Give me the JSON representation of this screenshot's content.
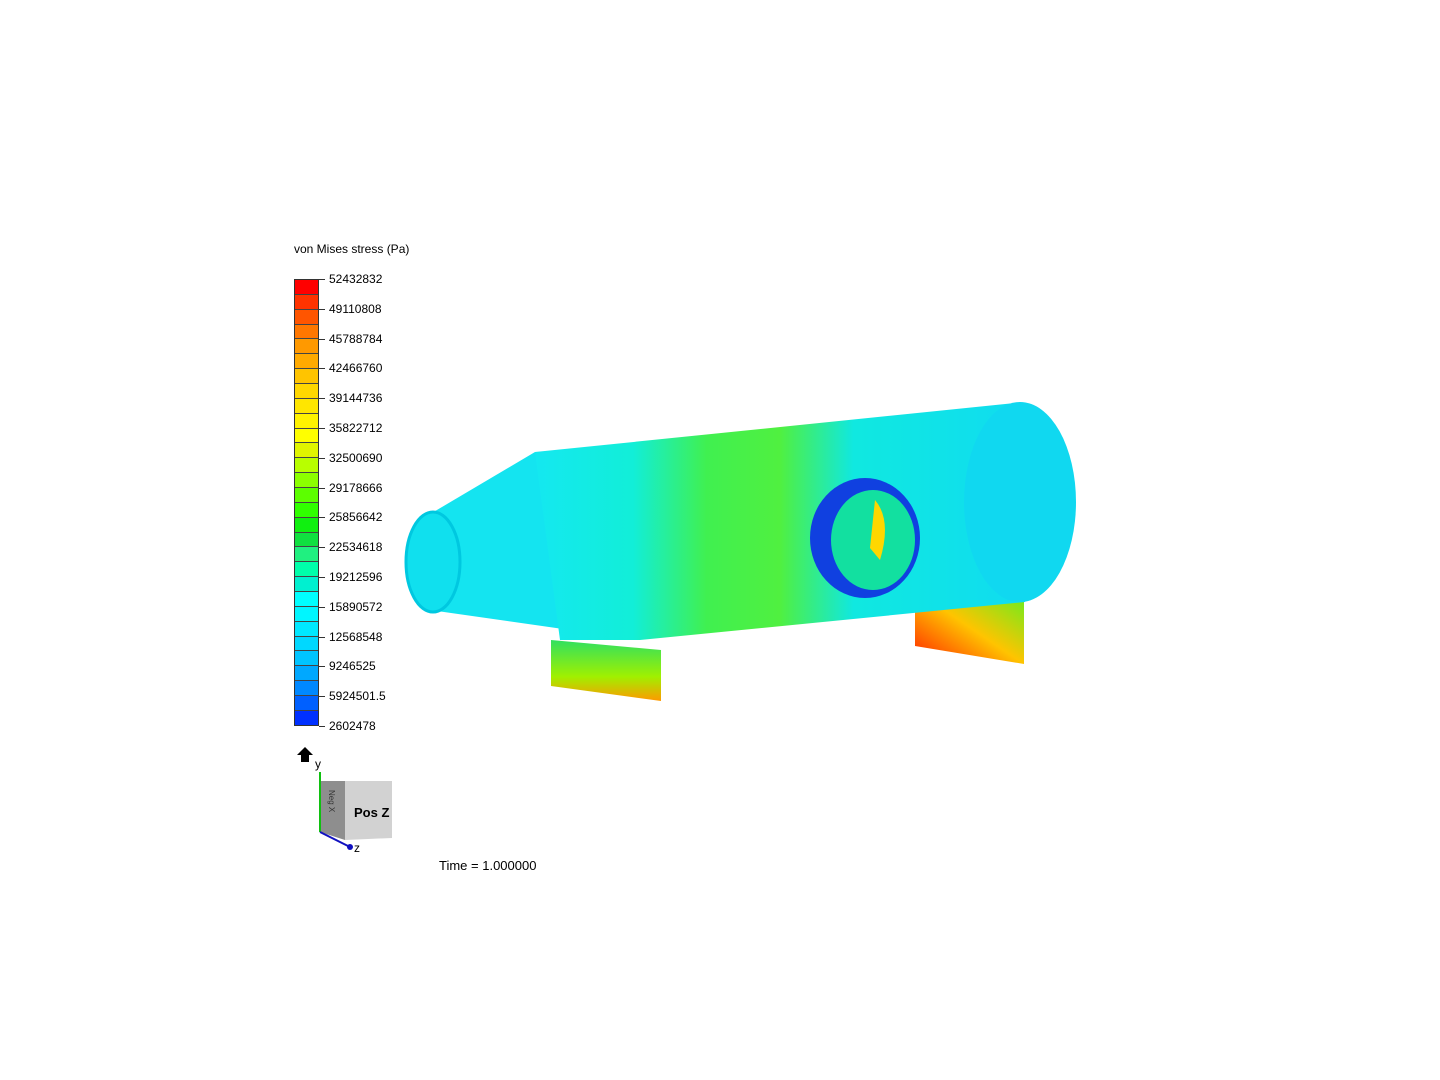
{
  "legend": {
    "title": "von Mises stress (Pa)",
    "labels": [
      "52432832",
      "49110808",
      "45788784",
      "42466760",
      "39144736",
      "35822712",
      "32500690",
      "29178666",
      "25856642",
      "22534618",
      "19212596",
      "15890572",
      "12568548",
      "9246525",
      "5924501.5",
      "2602478"
    ],
    "band_colors": [
      "#ff0000",
      "#ff3300",
      "#ff5500",
      "#ff7700",
      "#ff9900",
      "#ffaa00",
      "#ffc400",
      "#ffd700",
      "#ffe600",
      "#fff200",
      "#ffff00",
      "#e0f500",
      "#b8ff00",
      "#8cff00",
      "#5cff00",
      "#30ff00",
      "#10f010",
      "#10e040",
      "#20f080",
      "#00ffaa",
      "#00f0d0",
      "#00ffff",
      "#00f6ff",
      "#00e8ff",
      "#00d8ff",
      "#00c4ff",
      "#00a8ff",
      "#0088ff",
      "#0060ff",
      "#0030ff",
      "#0000ff"
    ]
  },
  "orientation_cube": {
    "face_label": "Pos Z",
    "side_label": "Neg X",
    "axis_y": "y",
    "axis_z": "z",
    "home_icon": "home-icon"
  },
  "time_label": "Time = 1.000000"
}
